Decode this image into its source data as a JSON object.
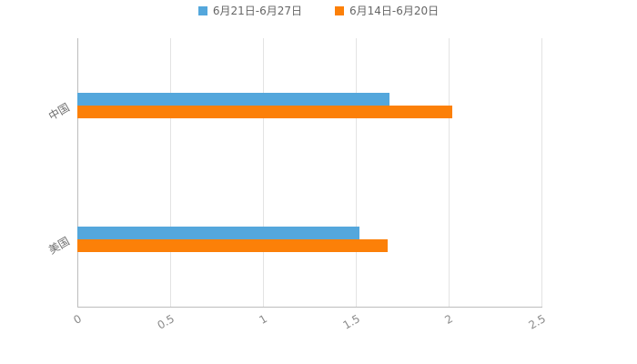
{
  "chart_data": {
    "type": "bar",
    "orientation": "horizontal",
    "title": "",
    "categories": [
      "中国",
      "美国"
    ],
    "series": [
      {
        "name": "6月21日-6月27日",
        "color": "#54A7DC",
        "values": [
          1.68,
          1.52
        ]
      },
      {
        "name": "6月14日-6月20日",
        "color": "#FC8008",
        "values": [
          2.02,
          1.67
        ]
      }
    ],
    "xlim": [
      0,
      2.5
    ],
    "xtick_values": [
      0,
      0.5,
      1,
      1.5,
      2,
      2.5
    ],
    "xtick_labels": [
      "0",
      "0.5",
      "1",
      "1.5",
      "2",
      "2.5"
    ],
    "ylabel": "",
    "xlabel": "",
    "grid": true,
    "legend_position": "top",
    "background_color": "#ffffff"
  }
}
